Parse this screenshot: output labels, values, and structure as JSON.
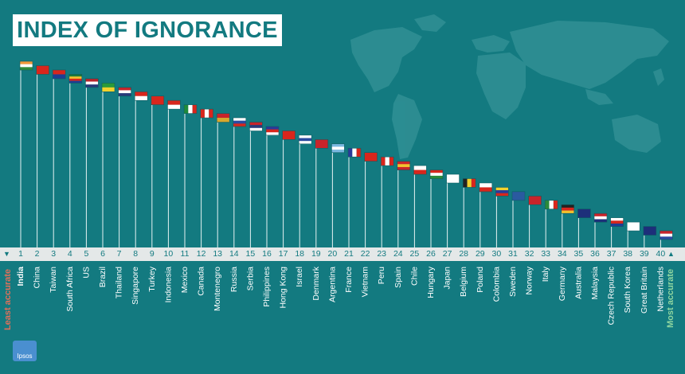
{
  "title": "INDEX OF IGNORANCE",
  "least_label": "Least accurate",
  "most_label": "Most accurate",
  "logo_text": "Ipsos",
  "icons": {
    "map": "world-map-icon",
    "left_arrow": "triangle-left-icon",
    "right_arrow": "triangle-right-icon",
    "logo": "ipsos-logo"
  },
  "colors": {
    "background": "#137a80",
    "title_text": "#137a80",
    "least": "#e0705a",
    "most": "#8fd6a0",
    "axis_bar": "#e4e8e8"
  },
  "chart_data": {
    "type": "ranking",
    "title": "INDEX OF IGNORANCE",
    "ranks": [
      1,
      2,
      3,
      4,
      5,
      6,
      7,
      8,
      9,
      10,
      11,
      12,
      13,
      14,
      15,
      16,
      17,
      18,
      19,
      20,
      21,
      22,
      23,
      24,
      25,
      26,
      27,
      28,
      29,
      30,
      31,
      32,
      33,
      34,
      35,
      36,
      37,
      38,
      39,
      40
    ],
    "countries": [
      "India",
      "China",
      "Taiwan",
      "South Africa",
      "US",
      "Brazil",
      "Thailand",
      "Singapore",
      "Turkey",
      "Indonesia",
      "Mexico",
      "Canada",
      "Montenegro",
      "Russia",
      "Serbia",
      "Philippines",
      "Hong Kong",
      "Israel",
      "Denmark",
      "Argentina",
      "France",
      "Vietnam",
      "Peru",
      "Spain",
      "Chile",
      "Hungary",
      "Japan",
      "Belgium",
      "Poland",
      "Colombia",
      "Sweden",
      "Norway",
      "Italy",
      "Germany",
      "Australia",
      "Malaysia",
      "Czech Republic",
      "South Korea",
      "Great Britain",
      "Netherlands"
    ],
    "flags": [
      "flag-india",
      "flag-china",
      "flag-taiwan",
      "flag-south-africa",
      "flag-us",
      "flag-brazil",
      "flag-thailand",
      "flag-singapore",
      "flag-turkey",
      "flag-indonesia",
      "flag-mexico",
      "flag-canada",
      "flag-montenegro",
      "flag-russia",
      "flag-serbia",
      "flag-philippines",
      "flag-hong-kong",
      "flag-israel",
      "flag-denmark",
      "flag-argentina",
      "flag-france",
      "flag-vietnam",
      "flag-peru",
      "flag-spain",
      "flag-chile",
      "flag-hungary",
      "flag-japan",
      "flag-belgium",
      "flag-poland",
      "flag-colombia",
      "flag-sweden",
      "flag-norway",
      "flag-italy",
      "flag-germany",
      "flag-australia",
      "flag-malaysia",
      "flag-czech-republic",
      "flag-south-korea",
      "flag-great-britain",
      "flag-netherlands"
    ],
    "scale_direction": [
      "Least accurate",
      "Most accurate"
    ]
  }
}
